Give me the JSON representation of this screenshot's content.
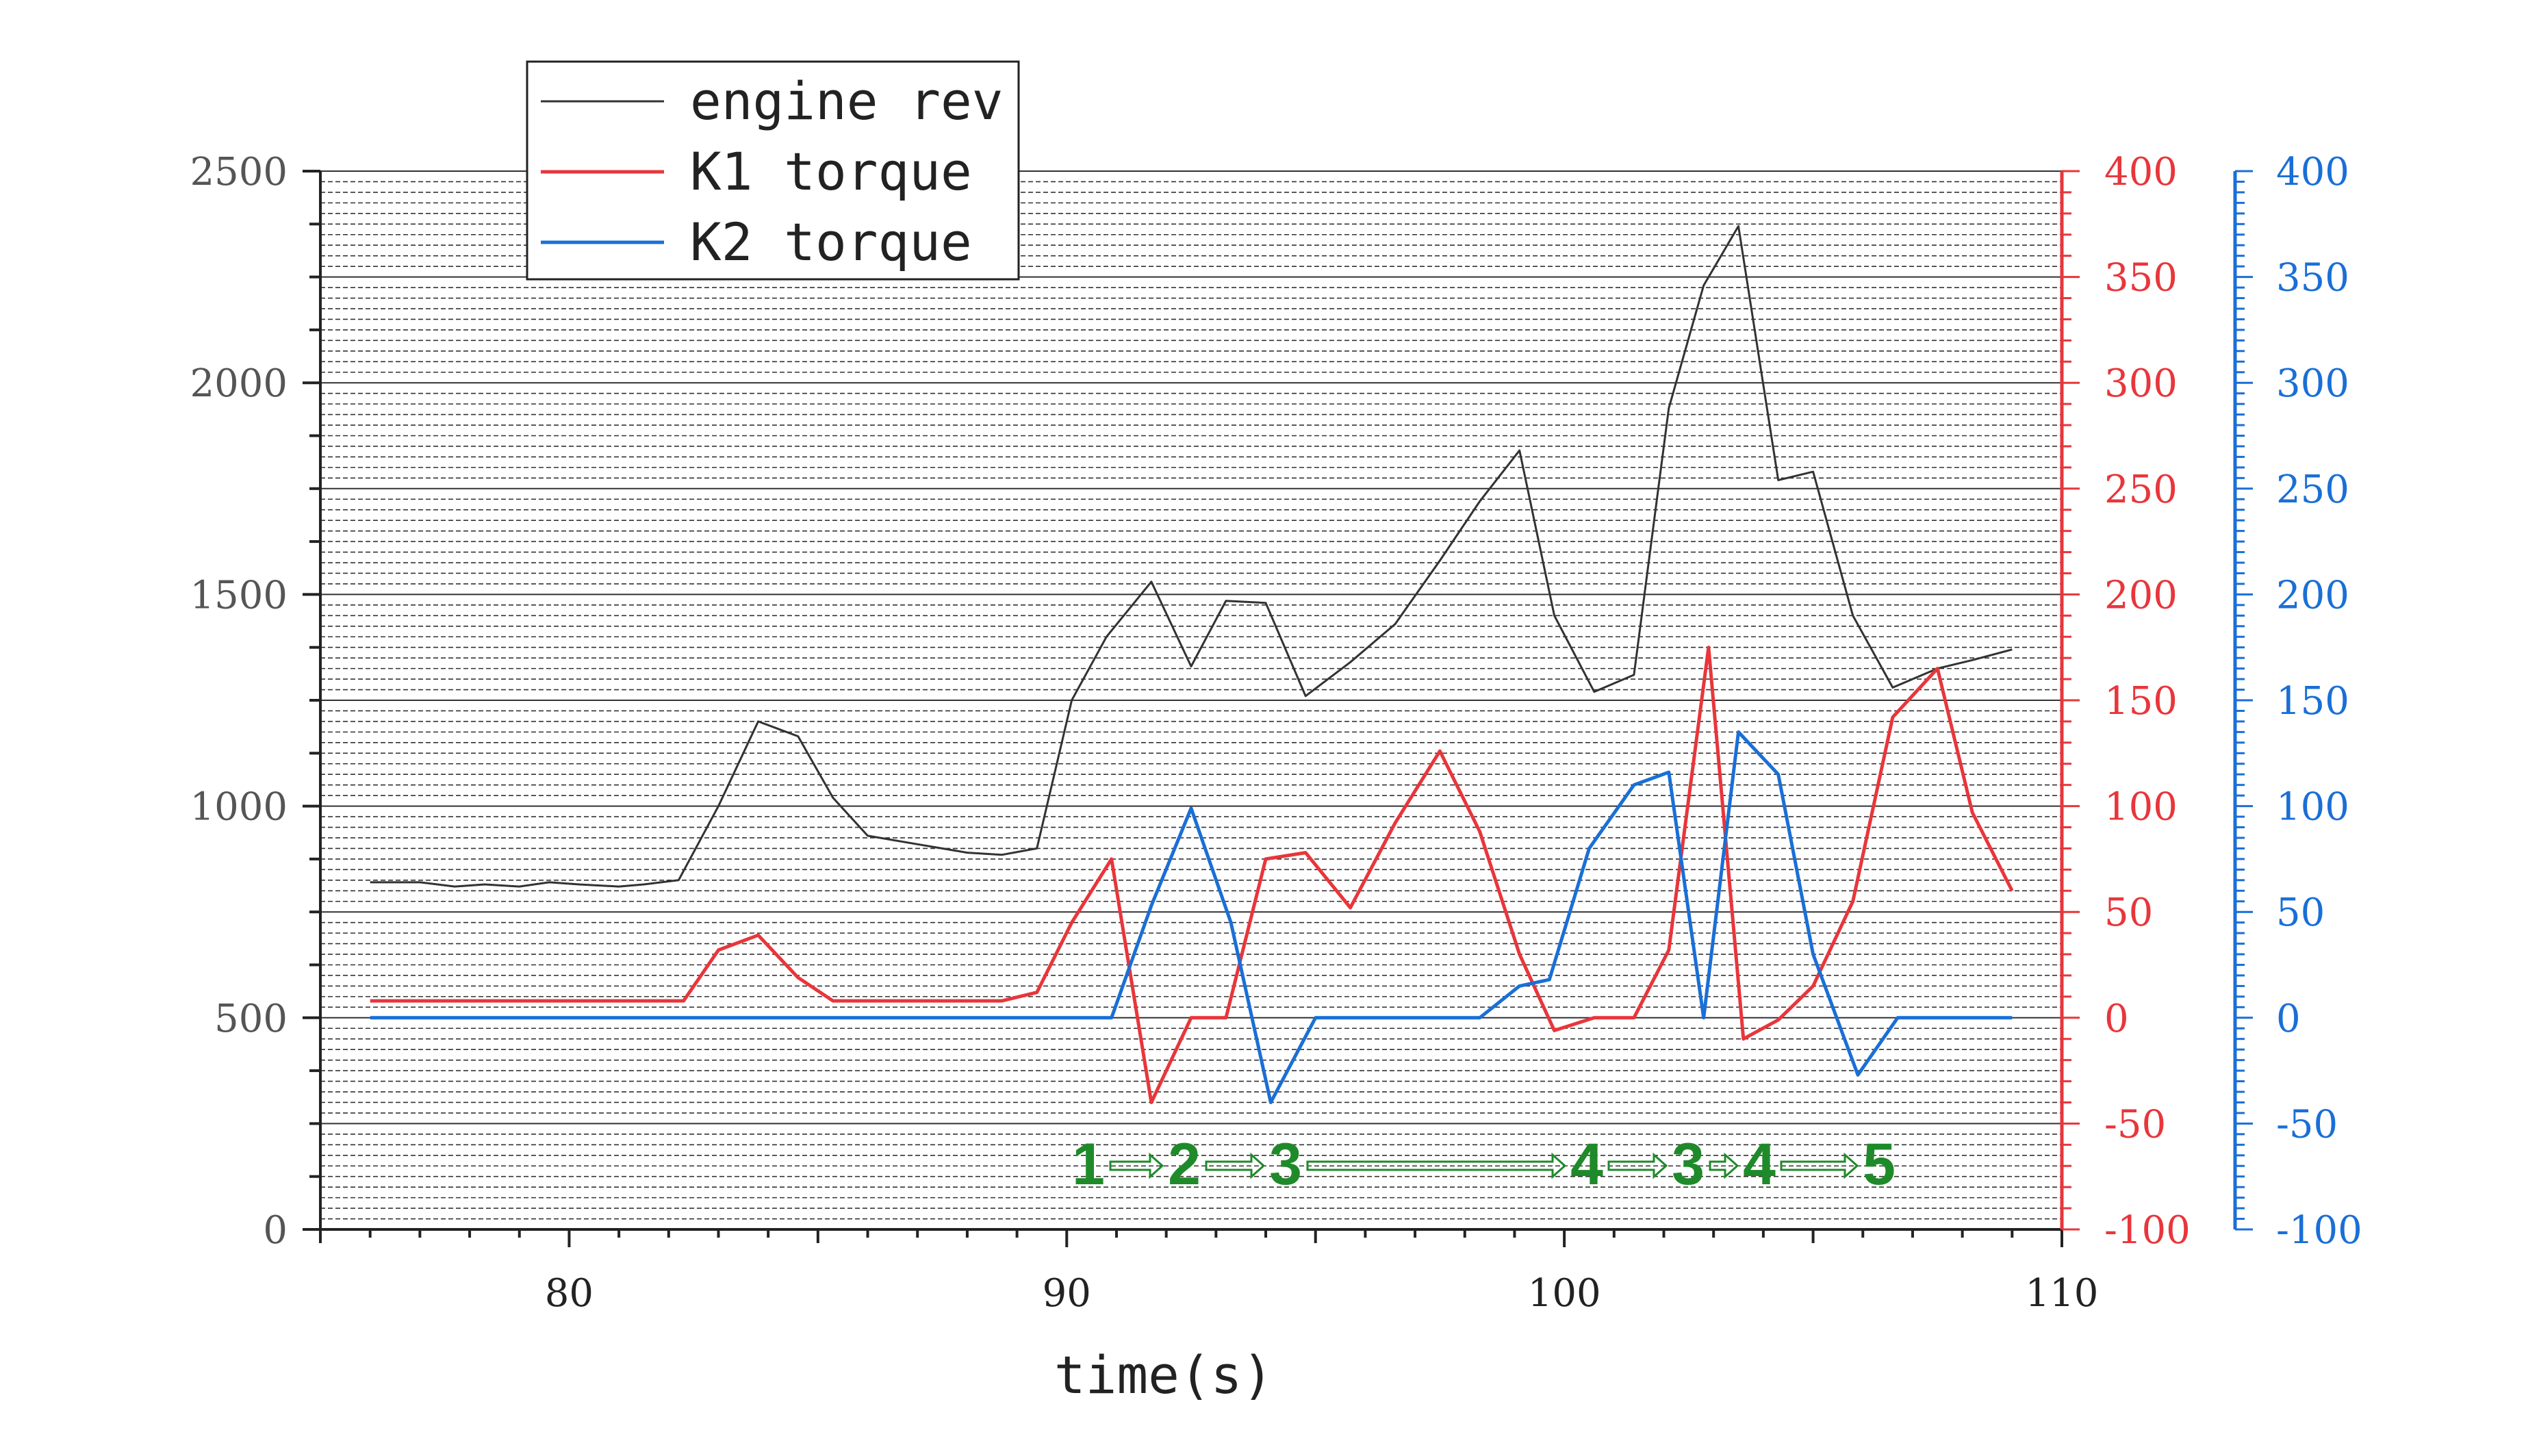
{
  "chart_data": {
    "type": "line",
    "xlabel": "time(s)",
    "xlim": [
      75,
      110
    ],
    "x_ticks": [
      "80",
      "90",
      "100",
      "110"
    ],
    "y_axes": [
      {
        "id": "left",
        "ylim": [
          0,
          2500
        ],
        "ticks": [
          "0",
          "500",
          "1000",
          "1500",
          "2000",
          "2500"
        ],
        "color": "#555555"
      },
      {
        "id": "red",
        "ylim": [
          -100,
          400
        ],
        "ticks": [
          "-100",
          "-50",
          "0",
          "50",
          "100",
          "150",
          "200",
          "250",
          "300",
          "350",
          "400"
        ],
        "color": "#e8363b"
      },
      {
        "id": "blue",
        "ylim": [
          -100,
          400
        ],
        "ticks": [
          "-100",
          "-50",
          "0",
          "50",
          "100",
          "150",
          "200",
          "250",
          "300",
          "350",
          "400"
        ],
        "color": "#1a6fd6"
      }
    ],
    "series": [
      {
        "name": "engine rev",
        "axis": "left",
        "color": "#333333",
        "x": [
          76,
          77,
          77.7,
          78.3,
          79,
          79.6,
          80.2,
          81,
          81.5,
          82.2,
          83,
          83.8,
          84.6,
          85.3,
          86,
          87,
          88,
          88.7,
          89.4,
          90.1,
          90.8,
          91.7,
          92.5,
          93.2,
          94,
          94.8,
          95.7,
          96.6,
          97.5,
          98.3,
          99.1,
          99.8,
          100.6,
          101.4,
          102.1,
          102.8,
          103.5,
          104.3,
          105,
          105.8,
          106.6,
          107.5,
          108.2,
          109
        ],
        "y": [
          820,
          820,
          810,
          815,
          810,
          820,
          815,
          810,
          815,
          825,
          1000,
          1200,
          1165,
          1020,
          930,
          910,
          890,
          885,
          900,
          1250,
          1400,
          1530,
          1330,
          1485,
          1480,
          1260,
          1340,
          1430,
          1580,
          1720,
          1840,
          1450,
          1270,
          1310,
          1940,
          2230,
          2370,
          1770,
          1790,
          1450,
          1280,
          1325,
          1345,
          1370
        ]
      },
      {
        "name": "K1 torque",
        "axis": "red",
        "color": "#e8363b",
        "x": [
          76,
          82.3,
          83,
          83.8,
          84.6,
          85.3,
          86,
          88.7,
          89.4,
          90.1,
          90.9,
          91.7,
          92.5,
          93.2,
          94,
          94.8,
          95.7,
          96.6,
          97.5,
          98.3,
          99.1,
          99.8,
          100.6,
          101.4,
          102.1,
          102.9,
          103.6,
          104.3,
          105,
          105.8,
          106.6,
          107.5,
          108.2,
          109
        ],
        "y": [
          8,
          8,
          32,
          39,
          19,
          8,
          8,
          8,
          12,
          45,
          75,
          -40,
          0,
          0,
          75,
          78,
          52,
          92,
          126,
          88,
          30,
          -6,
          0,
          0,
          32,
          175,
          -10,
          -1,
          15,
          55,
          142,
          165,
          97,
          60
        ]
      },
      {
        "name": "K2 torque",
        "axis": "blue",
        "color": "#1a6fd6",
        "x": [
          76,
          90.9,
          91.7,
          92.5,
          93.3,
          94.1,
          95,
          98.3,
          99.1,
          99.7,
          100.5,
          101.4,
          102.1,
          102.8,
          103.5,
          104.3,
          105,
          105.9,
          106.7,
          109
        ],
        "y": [
          0,
          0,
          53,
          99,
          45,
          -40,
          0,
          0,
          15,
          18,
          80,
          110,
          116,
          0,
          135,
          115,
          30,
          -27,
          0,
          0
        ]
      }
    ],
    "legend_position": "top-left",
    "grid": true,
    "annotations": {
      "stages": [
        "1",
        "2",
        "3",
        "4",
        "3",
        "4",
        "5"
      ],
      "color": "#1f8a2a"
    }
  }
}
